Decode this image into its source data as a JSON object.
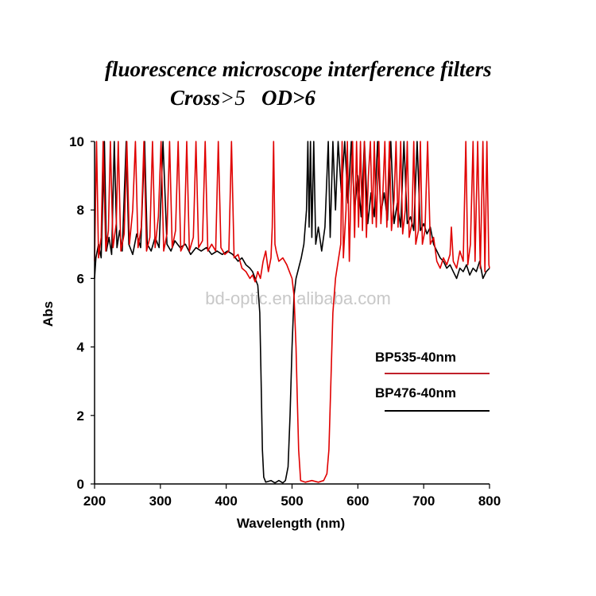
{
  "chart_data": {
    "type": "line",
    "title": "fluorescence microscope  interference filters",
    "subtitle_parts": [
      "Cross",
      ">5",
      "OD>6"
    ],
    "xlabel": "Wavelength (nm)",
    "ylabel": "Abs",
    "xlim": [
      200,
      800
    ],
    "ylim": [
      0,
      10
    ],
    "xticks": [
      200,
      300,
      400,
      500,
      600,
      700,
      800
    ],
    "yticks": [
      0,
      2,
      4,
      6,
      8,
      10
    ],
    "grid": false,
    "legend_position": "right",
    "watermark": "bd-optic.en.alibaba.com",
    "series": [
      {
        "name": "BP535-40nm",
        "color": "#e00000",
        "points": [
          [
            200,
            6.5
          ],
          [
            203,
            10
          ],
          [
            206,
            6.6
          ],
          [
            210,
            7.2
          ],
          [
            213,
            10
          ],
          [
            217,
            6.8
          ],
          [
            221,
            7.4
          ],
          [
            224,
            10
          ],
          [
            228,
            6.9
          ],
          [
            233,
            7.6
          ],
          [
            236,
            10
          ],
          [
            240,
            6.8
          ],
          [
            245,
            7.3
          ],
          [
            249,
            10
          ],
          [
            253,
            7.0
          ],
          [
            258,
            8.0
          ],
          [
            262,
            10
          ],
          [
            266,
            6.9
          ],
          [
            271,
            7.5
          ],
          [
            275,
            10
          ],
          [
            279,
            6.8
          ],
          [
            284,
            7.2
          ],
          [
            288,
            10
          ],
          [
            292,
            6.9
          ],
          [
            297,
            7.8
          ],
          [
            301,
            10
          ],
          [
            305,
            6.8
          ],
          [
            310,
            7.3
          ],
          [
            314,
            10
          ],
          [
            318,
            6.9
          ],
          [
            323,
            7.4
          ],
          [
            327,
            10
          ],
          [
            331,
            6.8
          ],
          [
            336,
            7.0
          ],
          [
            340,
            10
          ],
          [
            344,
            6.8
          ],
          [
            350,
            7.2
          ],
          [
            354,
            10
          ],
          [
            358,
            6.9
          ],
          [
            364,
            7.1
          ],
          [
            368,
            10
          ],
          [
            372,
            6.8
          ],
          [
            378,
            7.0
          ],
          [
            384,
            6.8
          ],
          [
            388,
            10
          ],
          [
            392,
            6.9
          ],
          [
            398,
            6.7
          ],
          [
            404,
            6.8
          ],
          [
            408,
            10
          ],
          [
            412,
            6.6
          ],
          [
            418,
            6.7
          ],
          [
            424,
            6.3
          ],
          [
            430,
            6.2
          ],
          [
            436,
            6.0
          ],
          [
            440,
            6.1
          ],
          [
            444,
            5.9
          ],
          [
            448,
            6.2
          ],
          [
            452,
            6.0
          ],
          [
            456,
            6.5
          ],
          [
            460,
            6.8
          ],
          [
            464,
            6.2
          ],
          [
            468,
            6.6
          ],
          [
            470,
            7.5
          ],
          [
            472,
            10
          ],
          [
            474,
            7.0
          ],
          [
            476,
            6.8
          ],
          [
            480,
            6.5
          ],
          [
            486,
            6.6
          ],
          [
            492,
            6.4
          ],
          [
            496,
            6.2
          ],
          [
            500,
            6.0
          ],
          [
            503,
            5.5
          ],
          [
            506,
            4.0
          ],
          [
            508,
            2.5
          ],
          [
            510,
            1.0
          ],
          [
            513,
            0.1
          ],
          [
            520,
            0.05
          ],
          [
            530,
            0.1
          ],
          [
            540,
            0.05
          ],
          [
            548,
            0.1
          ],
          [
            553,
            0.3
          ],
          [
            556,
            1.0
          ],
          [
            559,
            3.0
          ],
          [
            562,
            5.0
          ],
          [
            566,
            6.0
          ],
          [
            570,
            6.5
          ],
          [
            574,
            7.0
          ],
          [
            576,
            10
          ],
          [
            578,
            6.6
          ],
          [
            582,
            8
          ],
          [
            584,
            10
          ],
          [
            587,
            6.5
          ],
          [
            590,
            9
          ],
          [
            592,
            10
          ],
          [
            595,
            7.2
          ],
          [
            598,
            10
          ],
          [
            601,
            7.5
          ],
          [
            604,
            10
          ],
          [
            607,
            7.4
          ],
          [
            610,
            10
          ],
          [
            613,
            7.2
          ],
          [
            616,
            9
          ],
          [
            619,
            10
          ],
          [
            622,
            7.6
          ],
          [
            625,
            10
          ],
          [
            628,
            7.5
          ],
          [
            632,
            10
          ],
          [
            635,
            7.6
          ],
          [
            638,
            8.5
          ],
          [
            641,
            10
          ],
          [
            644,
            7.5
          ],
          [
            648,
            10
          ],
          [
            651,
            7.4
          ],
          [
            655,
            8.3
          ],
          [
            658,
            10
          ],
          [
            661,
            7.5
          ],
          [
            665,
            10
          ],
          [
            668,
            7.3
          ],
          [
            672,
            8.0
          ],
          [
            675,
            10
          ],
          [
            678,
            7.2
          ],
          [
            682,
            7.6
          ],
          [
            685,
            10
          ],
          [
            688,
            7.0
          ],
          [
            692,
            7.4
          ],
          [
            695,
            10
          ],
          [
            698,
            7.0
          ],
          [
            702,
            7.4
          ],
          [
            706,
            10
          ],
          [
            710,
            7.0
          ],
          [
            715,
            7.2
          ],
          [
            720,
            6.5
          ],
          [
            725,
            6.3
          ],
          [
            730,
            6.6
          ],
          [
            735,
            6.4
          ],
          [
            740,
            6.7
          ],
          [
            742,
            7.5
          ],
          [
            745,
            6.5
          ],
          [
            750,
            6.3
          ],
          [
            755,
            6.8
          ],
          [
            760,
            6.5
          ],
          [
            764,
            10
          ],
          [
            767,
            6.4
          ],
          [
            771,
            7.0
          ],
          [
            775,
            10
          ],
          [
            778,
            6.5
          ],
          [
            782,
            10
          ],
          [
            786,
            6.3
          ],
          [
            790,
            10
          ],
          [
            793,
            6.2
          ],
          [
            796,
            10
          ],
          [
            799,
            6.4
          ],
          [
            800,
            6.3
          ]
        ]
      },
      {
        "name": "BP476-40nm",
        "color": "#000000",
        "points": [
          [
            200,
            6.0
          ],
          [
            202,
            6.6
          ],
          [
            206,
            7.0
          ],
          [
            210,
            6.6
          ],
          [
            215,
            10
          ],
          [
            218,
            6.8
          ],
          [
            222,
            7.2
          ],
          [
            226,
            6.7
          ],
          [
            230,
            10
          ],
          [
            234,
            6.9
          ],
          [
            238,
            7.4
          ],
          [
            242,
            6.8
          ],
          [
            248,
            10
          ],
          [
            252,
            7.0
          ],
          [
            258,
            6.7
          ],
          [
            264,
            7.3
          ],
          [
            270,
            6.9
          ],
          [
            276,
            10
          ],
          [
            280,
            7.0
          ],
          [
            286,
            6.8
          ],
          [
            292,
            7.2
          ],
          [
            298,
            6.9
          ],
          [
            304,
            10
          ],
          [
            310,
            7.0
          ],
          [
            316,
            6.8
          ],
          [
            322,
            7.1
          ],
          [
            330,
            6.9
          ],
          [
            338,
            7.0
          ],
          [
            346,
            6.7
          ],
          [
            354,
            6.9
          ],
          [
            362,
            6.8
          ],
          [
            370,
            6.9
          ],
          [
            378,
            6.7
          ],
          [
            386,
            6.8
          ],
          [
            394,
            6.7
          ],
          [
            402,
            6.8
          ],
          [
            410,
            6.7
          ],
          [
            418,
            6.5
          ],
          [
            424,
            6.6
          ],
          [
            430,
            6.4
          ],
          [
            436,
            6.3
          ],
          [
            440,
            6.2
          ],
          [
            444,
            6.0
          ],
          [
            448,
            5.8
          ],
          [
            451,
            5.0
          ],
          [
            453,
            3.0
          ],
          [
            455,
            1.0
          ],
          [
            457,
            0.2
          ],
          [
            460,
            0.05
          ],
          [
            468,
            0.1
          ],
          [
            474,
            0.03
          ],
          [
            480,
            0.1
          ],
          [
            486,
            0.03
          ],
          [
            490,
            0.1
          ],
          [
            494,
            0.5
          ],
          [
            497,
            2.0
          ],
          [
            500,
            4.0
          ],
          [
            503,
            5.5
          ],
          [
            506,
            6.0
          ],
          [
            510,
            6.3
          ],
          [
            514,
            6.6
          ],
          [
            518,
            7.0
          ],
          [
            522,
            8
          ],
          [
            524,
            10
          ],
          [
            526,
            7.5
          ],
          [
            528,
            10
          ],
          [
            530,
            7.2
          ],
          [
            533,
            10
          ],
          [
            536,
            7.0
          ],
          [
            540,
            7.5
          ],
          [
            545,
            6.8
          ],
          [
            550,
            7.5
          ],
          [
            555,
            10
          ],
          [
            558,
            7.2
          ],
          [
            562,
            10
          ],
          [
            566,
            8
          ],
          [
            570,
            10
          ],
          [
            575,
            8.5
          ],
          [
            580,
            10
          ],
          [
            585,
            8.2
          ],
          [
            590,
            10
          ],
          [
            595,
            8
          ],
          [
            600,
            9
          ],
          [
            605,
            7.8
          ],
          [
            610,
            10
          ],
          [
            615,
            7.6
          ],
          [
            620,
            8.5
          ],
          [
            625,
            7.8
          ],
          [
            630,
            10
          ],
          [
            635,
            7.9
          ],
          [
            640,
            8.5
          ],
          [
            645,
            7.7
          ],
          [
            650,
            10
          ],
          [
            655,
            7.6
          ],
          [
            660,
            8.2
          ],
          [
            665,
            7.5
          ],
          [
            670,
            10
          ],
          [
            675,
            7.6
          ],
          [
            680,
            7.8
          ],
          [
            685,
            7.4
          ],
          [
            690,
            10
          ],
          [
            695,
            7.4
          ],
          [
            700,
            7.6
          ],
          [
            705,
            7.3
          ],
          [
            710,
            7.5
          ],
          [
            715,
            7.0
          ],
          [
            720,
            6.8
          ],
          [
            725,
            6.6
          ],
          [
            730,
            6.5
          ],
          [
            735,
            6.3
          ],
          [
            740,
            6.4
          ],
          [
            745,
            6.2
          ],
          [
            750,
            6.0
          ],
          [
            755,
            6.3
          ],
          [
            760,
            6.2
          ],
          [
            765,
            6.4
          ],
          [
            770,
            6.1
          ],
          [
            775,
            6.3
          ],
          [
            780,
            6.2
          ],
          [
            785,
            6.5
          ],
          [
            790,
            6.0
          ],
          [
            795,
            6.2
          ],
          [
            800,
            6.3
          ]
        ]
      }
    ]
  }
}
